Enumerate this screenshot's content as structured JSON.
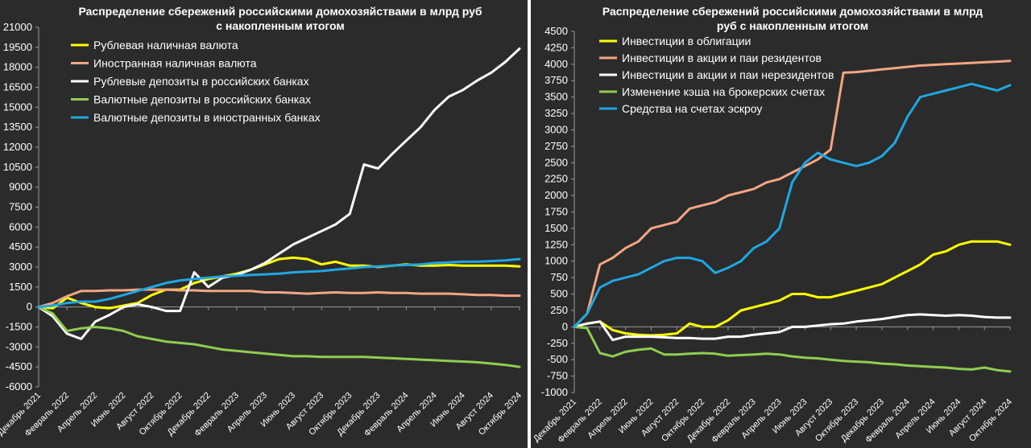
{
  "chart_data": [
    {
      "type": "line",
      "title": "Распределение сбережений российскими домохозяйствами в млрд руб",
      "subtitle": "с накопленным итогом",
      "ylim": [
        -6000,
        21000
      ],
      "yticks": [
        -6000,
        -4500,
        -3000,
        -1500,
        0,
        1500,
        3000,
        4500,
        6000,
        7500,
        9000,
        10500,
        12000,
        13500,
        15000,
        16500,
        18000,
        19500,
        21000
      ],
      "x_labels": [
        "Декабрь 2021",
        "Февраль 2022",
        "Апрель 2022",
        "Июнь 2022",
        "Август 2022",
        "Октябрь 2022",
        "Декабрь 2022",
        "Февраль 2023",
        "Апрель 2023",
        "Июнь 2023",
        "Август 2023",
        "Октябрь 2023",
        "Декабрь 2023",
        "Февраль 2024",
        "Апрель 2024",
        "Июнь 2024",
        "Август 2024",
        "Октябрь 2024"
      ],
      "grid": false,
      "legend_position": "top-left",
      "series": [
        {
          "name": "Рублевая наличная валюта",
          "color": "#ffff00",
          "values": [
            0,
            -100,
            700,
            300,
            0,
            -100,
            100,
            300,
            900,
            1300,
            1300,
            1800,
            2100,
            2300,
            2500,
            2800,
            3200,
            3600,
            3700,
            3600,
            3200,
            3400,
            3100,
            3100,
            3000,
            3100,
            3200,
            3100,
            3100,
            3150,
            3100,
            3100,
            3100,
            3100,
            3050
          ]
        },
        {
          "name": "Иностранная наличная валюта",
          "color": "#f4a582",
          "values": [
            0,
            300,
            800,
            1200,
            1200,
            1250,
            1250,
            1300,
            1300,
            1300,
            1250,
            1250,
            1200,
            1200,
            1200,
            1200,
            1100,
            1100,
            1050,
            1000,
            1050,
            1100,
            1050,
            1050,
            1100,
            1050,
            1050,
            1000,
            1000,
            1000,
            950,
            900,
            900,
            850,
            850
          ]
        },
        {
          "name": "Рублевые депозиты в российских банках",
          "color": "#ffffff",
          "values": [
            0,
            -700,
            -2000,
            -2400,
            -1100,
            -600,
            0,
            200,
            0,
            -300,
            -300,
            2600,
            1500,
            2200,
            2400,
            2800,
            3300,
            4000,
            4700,
            5200,
            5700,
            6200,
            7000,
            10700,
            10400,
            11500,
            12500,
            13500,
            14800,
            15800,
            16300,
            17000,
            17600,
            18400,
            19400
          ]
        },
        {
          "name": "Валютные депозиты в российских банках",
          "color": "#8fce4f",
          "values": [
            0,
            -500,
            -1800,
            -1600,
            -1500,
            -1600,
            -1800,
            -2200,
            -2400,
            -2600,
            -2700,
            -2800,
            -3000,
            -3200,
            -3300,
            -3400,
            -3500,
            -3600,
            -3700,
            -3700,
            -3750,
            -3750,
            -3750,
            -3750,
            -3800,
            -3850,
            -3900,
            -3950,
            -4000,
            -4050,
            -4100,
            -4150,
            -4250,
            -4350,
            -4500
          ]
        },
        {
          "name": "Валютные депозиты в иностранных банках",
          "color": "#1ea7e4",
          "values": [
            0,
            100,
            300,
            400,
            400,
            600,
            900,
            1200,
            1500,
            1800,
            2000,
            2100,
            2200,
            2300,
            2350,
            2400,
            2450,
            2500,
            2600,
            2650,
            2700,
            2800,
            2900,
            3000,
            3050,
            3100,
            3150,
            3200,
            3300,
            3350,
            3400,
            3400,
            3450,
            3500,
            3600
          ]
        }
      ]
    },
    {
      "type": "line",
      "title": "Распределение сбережений российскими домохозяйствами в млрд",
      "subtitle": "руб с накопленным итогом",
      "ylim": [
        -1000,
        4500
      ],
      "yticks": [
        -1000,
        -750,
        -500,
        -250,
        0,
        250,
        500,
        750,
        1000,
        1250,
        1500,
        1750,
        2000,
        2250,
        2500,
        2750,
        3000,
        3250,
        3500,
        3750,
        4000,
        4250,
        4500
      ],
      "x_labels": [
        "Декабрь 2021",
        "Февраль 2022",
        "Апрель 2022",
        "Июнь 2022",
        "Август 2022",
        "Октябрь 2022",
        "Декабрь 2022",
        "Февраль 2023",
        "Апрель 2023",
        "Июнь 2023",
        "Август 2023",
        "Октябрь 2023",
        "Декабрь 2023",
        "Февраль 2024",
        "Апрель 2024",
        "Июнь 2024",
        "Август 2024",
        "Октябрь 2024"
      ],
      "grid": false,
      "legend_position": "top-left",
      "series": [
        {
          "name": "Инвестиции в облигации",
          "color": "#ffff00",
          "values": [
            0,
            50,
            80,
            -50,
            -100,
            -120,
            -130,
            -120,
            -100,
            50,
            0,
            0,
            100,
            250,
            300,
            350,
            400,
            500,
            500,
            450,
            450,
            500,
            550,
            600,
            650,
            750,
            850,
            950,
            1100,
            1150,
            1250,
            1300,
            1300,
            1300,
            1250
          ]
        },
        {
          "name": "Инвестиции в акции и паи резидентов",
          "color": "#f4a582",
          "values": [
            0,
            200,
            950,
            1050,
            1200,
            1300,
            1500,
            1550,
            1600,
            1800,
            1850,
            1900,
            2000,
            2050,
            2100,
            2200,
            2250,
            2350,
            2450,
            2550,
            2700,
            3870,
            3880,
            3900,
            3920,
            3940,
            3960,
            3980,
            3990,
            4000,
            4010,
            4020,
            4030,
            4040,
            4050
          ]
        },
        {
          "name": "Инвестиции в акции и паи нерезидентов",
          "color": "#ffffff",
          "values": [
            0,
            50,
            80,
            -200,
            -150,
            -150,
            -150,
            -160,
            -170,
            -170,
            -180,
            -180,
            -150,
            -150,
            -120,
            -100,
            -80,
            0,
            0,
            20,
            40,
            50,
            80,
            100,
            120,
            150,
            180,
            190,
            180,
            170,
            180,
            170,
            150,
            140,
            140
          ]
        },
        {
          "name": "Изменение кэша на брокерских счетах",
          "color": "#8fce4f",
          "values": [
            0,
            -20,
            -400,
            -450,
            -380,
            -350,
            -330,
            -420,
            -420,
            -410,
            -400,
            -410,
            -440,
            -430,
            -420,
            -410,
            -420,
            -450,
            -470,
            -480,
            -500,
            -520,
            -530,
            -540,
            -560,
            -570,
            -590,
            -600,
            -610,
            -620,
            -640,
            -650,
            -620,
            -660,
            -680
          ]
        },
        {
          "name": "Средства на счетах эскроу",
          "color": "#1ea7e4",
          "values": [
            0,
            200,
            600,
            700,
            750,
            800,
            900,
            1000,
            1050,
            1050,
            1000,
            820,
            900,
            1000,
            1200,
            1300,
            1500,
            2200,
            2500,
            2650,
            2550,
            2500,
            2450,
            2500,
            2600,
            2800,
            3200,
            3500,
            3550,
            3600,
            3650,
            3700,
            3650,
            3600,
            3680
          ]
        }
      ]
    }
  ]
}
